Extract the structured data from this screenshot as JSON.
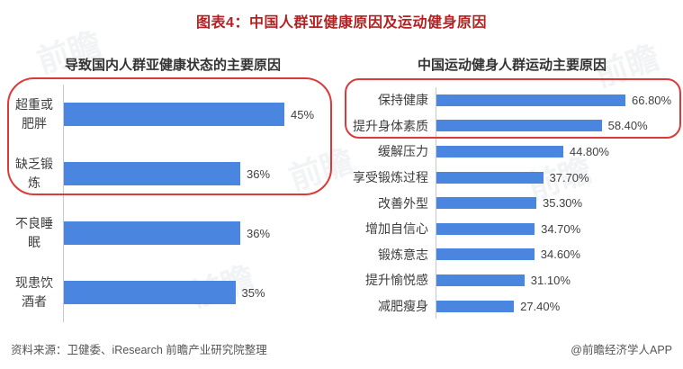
{
  "header": {
    "title": "图表4：中国人群亚健康原因及运动健身原因"
  },
  "watermark_text": "前瞻",
  "colors": {
    "bar_blue": "#4a85e0",
    "annotation_red": "#dc3a3a",
    "title_red": "#b22222"
  },
  "chart_data": [
    {
      "type": "bar",
      "orientation": "horizontal",
      "title": "导致国内人群亚健康状态的主要原因",
      "categories": [
        "超重或肥胖",
        "缺乏锻炼",
        "不良睡眠",
        "现患饮酒者"
      ],
      "values": [
        45,
        36,
        36,
        35
      ],
      "value_labels": [
        "45%",
        "36%",
        "36%",
        "35%"
      ],
      "xlim": [
        0,
        50
      ],
      "unit": "%",
      "grid": false,
      "bar_color": "#4a85e0",
      "highlight": {
        "type": "red-outline",
        "rows": [
          0,
          1
        ]
      }
    },
    {
      "type": "bar",
      "orientation": "horizontal",
      "title": "中国运动健身人群运动主要原因",
      "categories": [
        "保持健康",
        "提升身体素质",
        "缓解压力",
        "享受锻炼过程",
        "改善外型",
        "增加自信心",
        "锻炼意志",
        "提升愉悦感",
        "减肥瘦身"
      ],
      "values": [
        66.8,
        58.4,
        44.8,
        37.7,
        35.3,
        34.7,
        34.6,
        31.1,
        27.4
      ],
      "value_labels": [
        "66.80%",
        "58.40%",
        "44.80%",
        "37.70%",
        "35.30%",
        "34.70%",
        "34.60%",
        "31.10%",
        "27.40%"
      ],
      "xlim": [
        0,
        80
      ],
      "unit": "%",
      "grid": false,
      "bar_color": "#4a85e0",
      "highlight": {
        "type": "red-outline",
        "rows": [
          0,
          1
        ]
      }
    }
  ],
  "footer": {
    "source": "资料来源：卫健委、iResearch 前瞻产业研究院整理",
    "brand": "@前瞻经济学人APP"
  }
}
